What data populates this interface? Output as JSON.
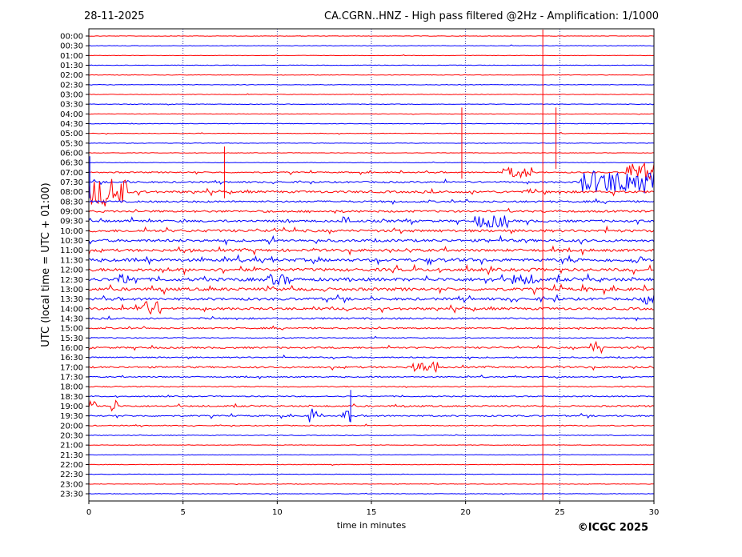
{
  "header": {
    "date": "28-11-2025",
    "station_title": "CA.CGRN..HNZ - High pass filtered @2Hz - Amplification: 1/1000"
  },
  "copyright": "©ICGC 2025",
  "colors": {
    "even_trace": "#ff0000",
    "odd_trace": "#0000ff",
    "grid": "#00008b"
  },
  "chart_data": {
    "type": "line",
    "subtype": "helicorder",
    "xlabel": "time in minutes",
    "ylabel": "UTC (local time = UTC + 01:00)",
    "xlim": [
      0,
      30
    ],
    "x_ticks": [
      0,
      5,
      10,
      15,
      20,
      25,
      30
    ],
    "grid": "vertical dotted at 5,10,15,20,25",
    "rows": [
      "00:00",
      "00:30",
      "01:00",
      "01:30",
      "02:00",
      "02:30",
      "03:00",
      "03:30",
      "04:00",
      "04:30",
      "05:00",
      "05:30",
      "06:00",
      "06:30",
      "07:00",
      "07:30",
      "08:00",
      "08:30",
      "09:00",
      "09:30",
      "10:00",
      "10:30",
      "11:00",
      "11:30",
      "12:00",
      "12:30",
      "13:00",
      "13:30",
      "14:00",
      "14:30",
      "15:00",
      "15:30",
      "16:00",
      "16:30",
      "17:00",
      "17:30",
      "18:00",
      "18:30",
      "19:00",
      "19:30",
      "20:00",
      "20:30",
      "21:00",
      "21:30",
      "22:00",
      "22:30",
      "23:00",
      "23:30"
    ],
    "row_activity": [
      0.12,
      0.15,
      0.12,
      0.15,
      0.14,
      0.15,
      0.14,
      0.15,
      0.14,
      0.16,
      0.15,
      0.16,
      0.12,
      0.14,
      0.35,
      0.45,
      0.6,
      0.5,
      0.55,
      0.6,
      0.7,
      0.7,
      0.7,
      0.8,
      0.8,
      0.85,
      0.8,
      0.7,
      0.65,
      0.45,
      0.4,
      0.25,
      0.45,
      0.35,
      0.45,
      0.3,
      0.3,
      0.3,
      0.4,
      0.4,
      0.25,
      0.2,
      0.15,
      0.15,
      0.15,
      0.15,
      0.15,
      0.12
    ],
    "events": [
      {
        "row": 16,
        "t": 0.0,
        "dur": 2.0,
        "amp": 1.4
      },
      {
        "row": 15,
        "t": 26.0,
        "dur": 4.0,
        "amp": 1.1
      },
      {
        "row": 14,
        "t": 28.5,
        "dur": 1.5,
        "amp": 0.9
      },
      {
        "row": 14,
        "t": 22.0,
        "dur": 1.5,
        "amp": 0.5
      },
      {
        "row": 19,
        "t": 20.5,
        "dur": 1.8,
        "amp": 0.6
      },
      {
        "row": 19,
        "t": 13.5,
        "dur": 0.4,
        "amp": 0.6
      },
      {
        "row": 25,
        "t": 1.5,
        "dur": 1.0,
        "amp": 0.5
      },
      {
        "row": 25,
        "t": 9.5,
        "dur": 1.2,
        "amp": 0.5
      },
      {
        "row": 25,
        "t": 22.5,
        "dur": 1.2,
        "amp": 0.5
      },
      {
        "row": 28,
        "t": 2.5,
        "dur": 1.3,
        "amp": 0.7
      },
      {
        "row": 32,
        "t": 26.5,
        "dur": 0.8,
        "amp": 0.6
      },
      {
        "row": 34,
        "t": 17.0,
        "dur": 1.5,
        "amp": 0.5
      },
      {
        "row": 38,
        "t": 0.0,
        "dur": 0.5,
        "amp": 0.6
      },
      {
        "row": 38,
        "t": 1.2,
        "dur": 0.3,
        "amp": 0.6
      },
      {
        "row": 39,
        "t": 11.7,
        "dur": 0.4,
        "amp": 0.8
      },
      {
        "row": 39,
        "t": 13.3,
        "dur": 0.6,
        "amp": 0.6
      },
      {
        "row": 27,
        "t": 29.3,
        "dur": 0.7,
        "amp": 0.5
      },
      {
        "row": 23,
        "t": 28.8,
        "dur": 0.6,
        "amp": 0.4
      }
    ],
    "spikes": [
      {
        "x": 24.1,
        "y_top_row": 0,
        "y_bottom_row": 48
      },
      {
        "x": 19.8,
        "y_top_row": 8,
        "y_bottom_row": 15
      },
      {
        "x": 24.8,
        "y_top_row": 8,
        "y_bottom_row": 14
      },
      {
        "x": 13.9,
        "y_top_row": 37,
        "y_bottom_row": 40
      },
      {
        "x": 7.2,
        "y_top_row": 12,
        "y_bottom_row": 17
      },
      {
        "x": 0.05,
        "y_top_row": 13,
        "y_bottom_row": 17
      }
    ]
  }
}
